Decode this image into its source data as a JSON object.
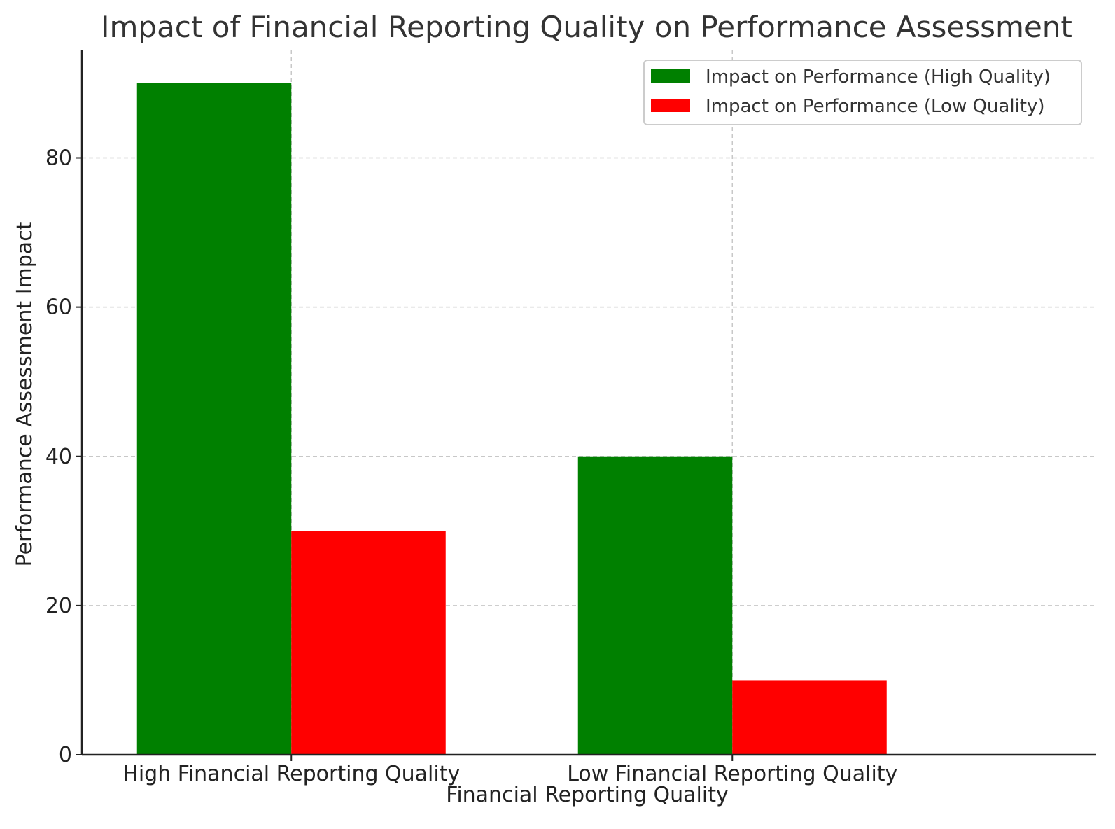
{
  "chart_data": {
    "type": "bar",
    "title": "Impact of Financial Reporting Quality on Performance Assessment",
    "xlabel": "Financial Reporting Quality",
    "ylabel": "Performance Assessment Impact",
    "categories": [
      "High Financial Reporting Quality",
      "Low Financial Reporting Quality"
    ],
    "series": [
      {
        "name": "Impact on Performance (High Quality)",
        "color": "#008000",
        "values": [
          90,
          40
        ]
      },
      {
        "name": "Impact on Performance (Low Quality)",
        "color": "#ff0000",
        "values": [
          30,
          10
        ]
      }
    ],
    "ylim": [
      0,
      94.5
    ],
    "yticks": [
      0,
      20,
      40,
      60,
      80
    ],
    "grid": true,
    "legend_position": "top-right"
  }
}
